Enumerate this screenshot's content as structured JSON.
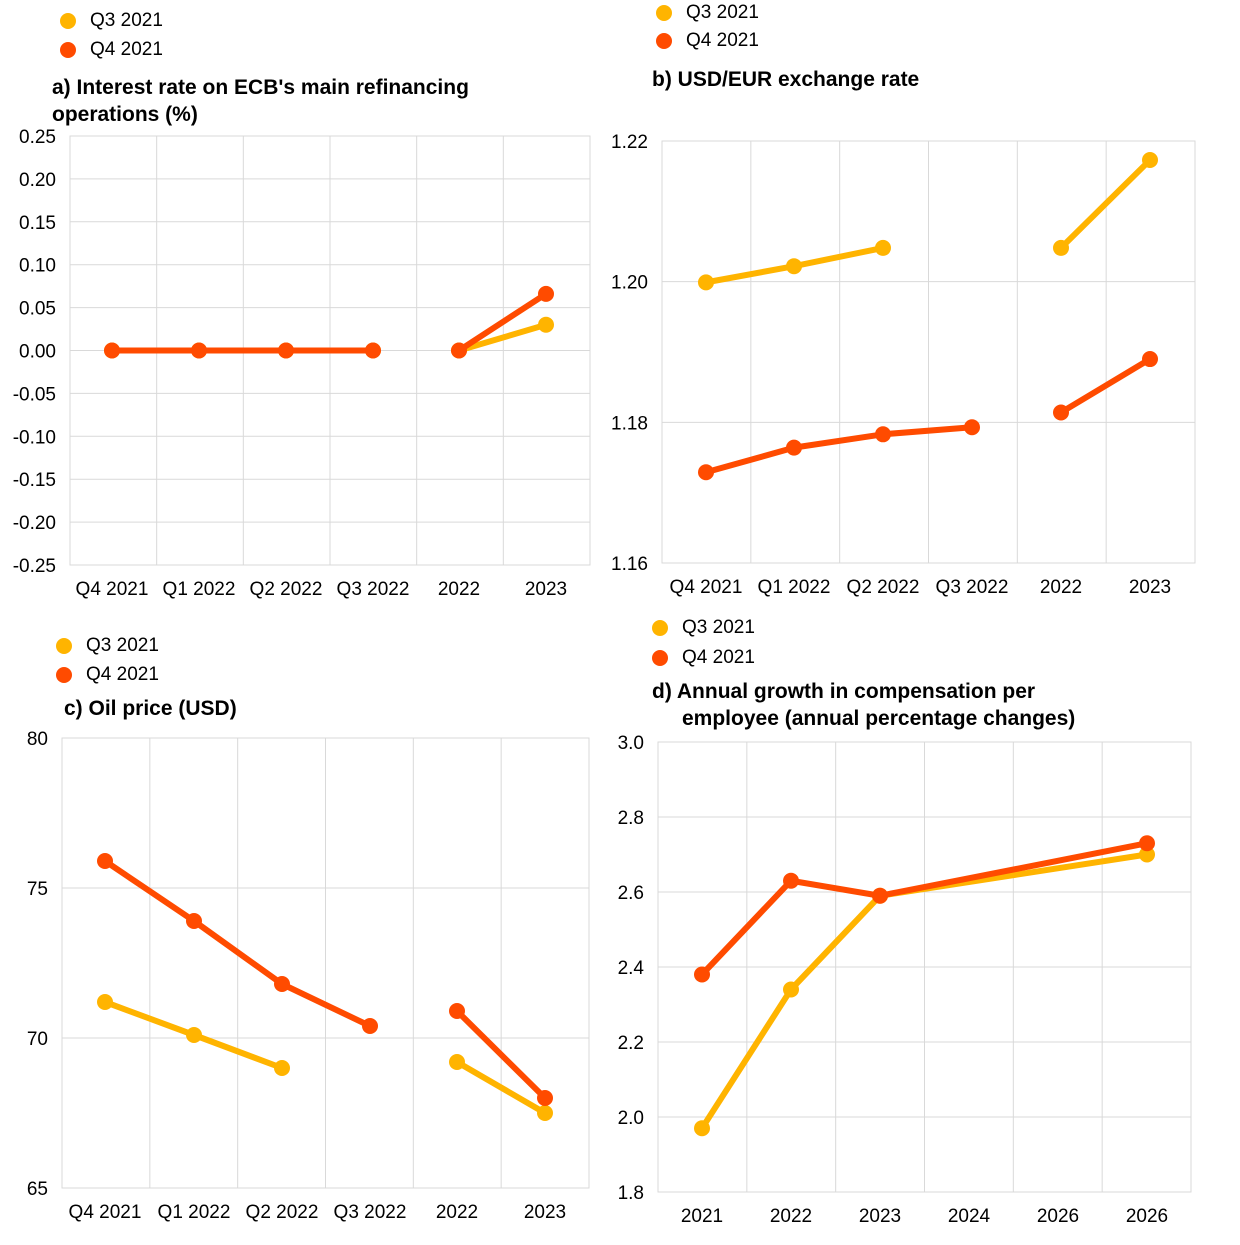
{
  "colors": {
    "q3": "#FFB400",
    "q4": "#FF4B00",
    "grid": "#d9d9d9"
  },
  "chart_data": [
    {
      "id": "a",
      "type": "line",
      "title": "a) Interest rate on ECB's main refinancing operations (%)",
      "categories": [
        "Q4 2021",
        "Q1 2022",
        "Q2 2022",
        "Q3 2022",
        "2022",
        "2023"
      ],
      "ylim": [
        -0.25,
        0.25
      ],
      "yticks": [
        "0.25",
        "0.20",
        "0.15",
        "0.10",
        "0.05",
        "0.00",
        "-0.05",
        "-0.10",
        "-0.15",
        "-0.20",
        "-0.25"
      ],
      "grid": true,
      "legend": "top-left",
      "series": [
        {
          "name": "Q3 2021",
          "color": "#FFB400",
          "segments": [
            [
              4,
              5
            ]
          ],
          "values": [
            0.0,
            0.0,
            0.0,
            0.0,
            0.0,
            0.03
          ]
        },
        {
          "name": "Q4 2021",
          "color": "#FF4B00",
          "segments": [
            [
              0,
              3
            ],
            [
              4,
              5
            ]
          ],
          "values": [
            0.0,
            0.0,
            0.0,
            0.0,
            0.0,
            0.066
          ]
        }
      ]
    },
    {
      "id": "b",
      "type": "line",
      "title": "b) USD/EUR exchange rate",
      "categories": [
        "Q4 2021",
        "Q1 2022",
        "Q2 2022",
        "Q3 2022",
        "2022",
        "2023"
      ],
      "ylim": [
        1.16,
        1.22
      ],
      "yticks": [
        "1.22",
        "1.20",
        "1.18",
        "1.16"
      ],
      "grid": true,
      "legend": "top-left",
      "series": [
        {
          "name": "Q3 2021",
          "color": "#FFB400",
          "segments": [
            [
              0,
              2
            ],
            [
              4,
              5
            ]
          ],
          "values": [
            1.1999,
            1.2022,
            1.2048,
            null,
            1.2048,
            1.2173
          ]
        },
        {
          "name": "Q4 2021",
          "color": "#FF4B00",
          "segments": [
            [
              0,
              3
            ],
            [
              4,
              5
            ]
          ],
          "values": [
            1.1729,
            1.1764,
            1.1783,
            1.1793,
            1.1814,
            1.189
          ]
        }
      ]
    },
    {
      "id": "c",
      "type": "line",
      "title": "c) Oil price (USD)",
      "categories": [
        "Q4 2021",
        "Q1 2022",
        "Q2 2022",
        "Q3 2022",
        "2022",
        "2023"
      ],
      "ylim": [
        65,
        80
      ],
      "yticks": [
        "80",
        "75",
        "70",
        "65"
      ],
      "grid": true,
      "legend": "top-left",
      "series": [
        {
          "name": "Q3 2021",
          "color": "#FFB400",
          "segments": [
            [
              0,
              2
            ],
            [
              4,
              5
            ]
          ],
          "values": [
            71.2,
            70.1,
            69.0,
            null,
            69.2,
            67.5
          ]
        },
        {
          "name": "Q4 2021",
          "color": "#FF4B00",
          "segments": [
            [
              0,
              3
            ],
            [
              4,
              5
            ]
          ],
          "values": [
            75.9,
            73.9,
            71.8,
            70.4,
            70.9,
            68.0
          ]
        }
      ]
    },
    {
      "id": "d",
      "type": "line",
      "title": "d) Annual growth in compensation per employee (annual percentage changes)",
      "categories": [
        "2021",
        "2022",
        "2023",
        "2024",
        "2026",
        "2026"
      ],
      "ylim": [
        1.8,
        3.0
      ],
      "yticks": [
        "3.0",
        "2.8",
        "2.6",
        "2.4",
        "2.2",
        "2.0",
        "1.8"
      ],
      "grid": true,
      "legend": "top-left",
      "series": [
        {
          "name": "Q3 2021",
          "color": "#FFB400",
          "segments": [
            [
              0,
              2
            ],
            [
              2,
              5
            ]
          ],
          "values": [
            1.97,
            2.34,
            2.59,
            null,
            null,
            2.7
          ]
        },
        {
          "name": "Q4 2021",
          "color": "#FF4B00",
          "segments": [
            [
              0,
              2
            ],
            [
              2,
              5
            ]
          ],
          "values": [
            2.38,
            2.63,
            2.59,
            null,
            null,
            2.73
          ]
        }
      ]
    }
  ],
  "legend_labels": {
    "q3": "Q3 2021",
    "q4": "Q4 2021"
  },
  "titles": {
    "a_line1": "a) Interest rate on ECB's main refinancing",
    "a_line2": "operations (%)",
    "b": "b) USD/EUR exchange rate",
    "c": "c) Oil price (USD)",
    "d_line1": "d) Annual growth in compensation per",
    "d_line2": "employee (annual percentage changes)"
  }
}
